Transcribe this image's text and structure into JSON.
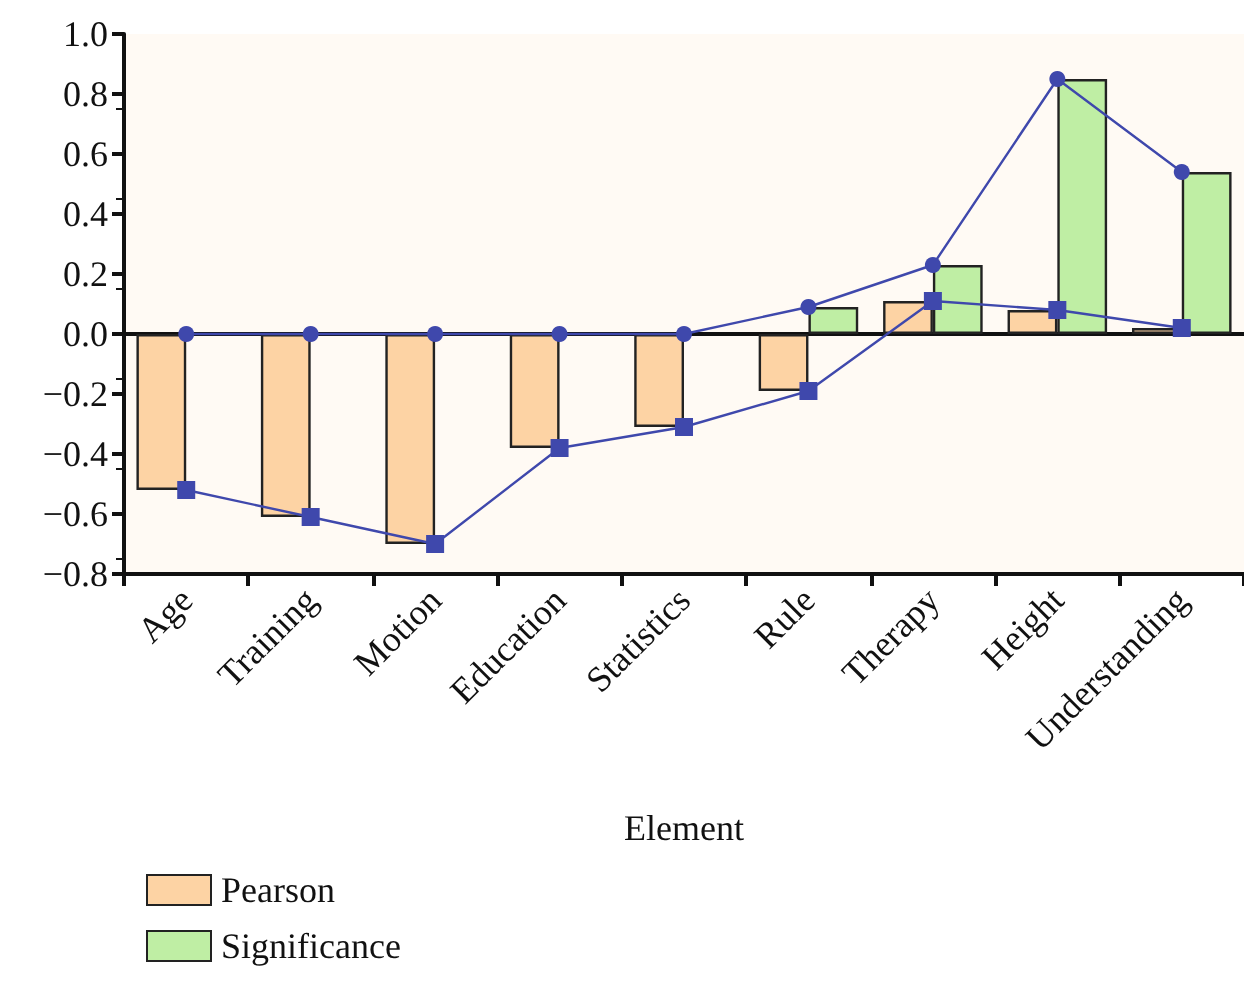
{
  "chart_data": {
    "type": "bar",
    "xlabel": "Element",
    "categories": [
      "Age",
      "Training",
      "Motion",
      "Education",
      "Statistics",
      "Rule",
      "Therapy",
      "Height",
      "Understanding"
    ],
    "series": [
      {
        "name": "Pearson",
        "color": "#fdd3a4",
        "values": [
          -0.52,
          -0.61,
          -0.7,
          -0.38,
          -0.31,
          -0.19,
          0.11,
          0.08,
          0.02
        ]
      },
      {
        "name": "Significance",
        "color": "#bfeea4",
        "values": [
          0,
          0,
          0,
          0,
          0,
          0.09,
          0.23,
          0.85,
          0.54
        ]
      },
      {
        "type": "line",
        "marker": "square",
        "color": "#3f48ac",
        "values": [
          -0.52,
          -0.61,
          -0.7,
          -0.38,
          -0.31,
          -0.19,
          0.11,
          0.08,
          0.02
        ]
      },
      {
        "type": "line",
        "marker": "circle",
        "color": "#3f48ac",
        "values": [
          0,
          0,
          0,
          0,
          0,
          0.09,
          0.23,
          0.85,
          0.54
        ]
      }
    ],
    "ylim": [
      -0.8,
      1.0
    ],
    "yticks": [
      {
        "value": -0.8,
        "label": "−0.8"
      },
      {
        "value": -0.6,
        "label": "−0.6"
      },
      {
        "value": -0.4,
        "label": "−0.4"
      },
      {
        "value": -0.2,
        "label": "−0.2"
      },
      {
        "value": 0,
        "label": "0.0"
      },
      {
        "value": 0.2,
        "label": "0.2"
      },
      {
        "value": 0.4,
        "label": "0.4"
      },
      {
        "value": 0.6,
        "label": "0.6"
      },
      {
        "value": 0.8,
        "label": "0.8"
      },
      {
        "value": 1.0,
        "label": "1.0"
      }
    ],
    "legend": "bottom left"
  }
}
